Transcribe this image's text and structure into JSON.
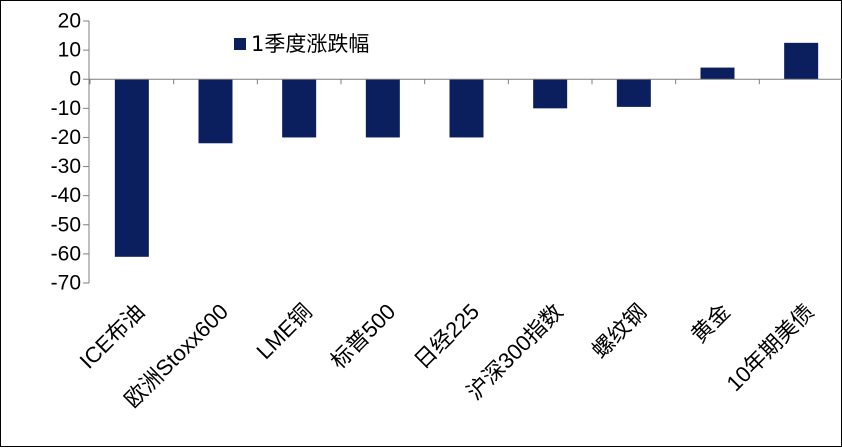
{
  "chart_data": {
    "type": "bar",
    "categories": [
      "ICE布油",
      "欧洲Stoxx600",
      "LME铜",
      "标普500",
      "日经225",
      "沪深300指数",
      "螺纹钢",
      "黄金",
      "10年期美债"
    ],
    "series": [
      {
        "name": "1季度涨跌幅",
        "values": [
          -61,
          -22,
          -20,
          -20,
          -20,
          -10,
          -9.5,
          4,
          12.5
        ],
        "color": "#0b1f5e"
      }
    ],
    "yticks": [
      20,
      10,
      0,
      -10,
      -20,
      -30,
      -40,
      -50,
      -60,
      -70
    ],
    "ylim": [
      -70,
      20
    ],
    "grid": false,
    "legend_position": "top-left",
    "axis_color": "#7f7f7f"
  }
}
